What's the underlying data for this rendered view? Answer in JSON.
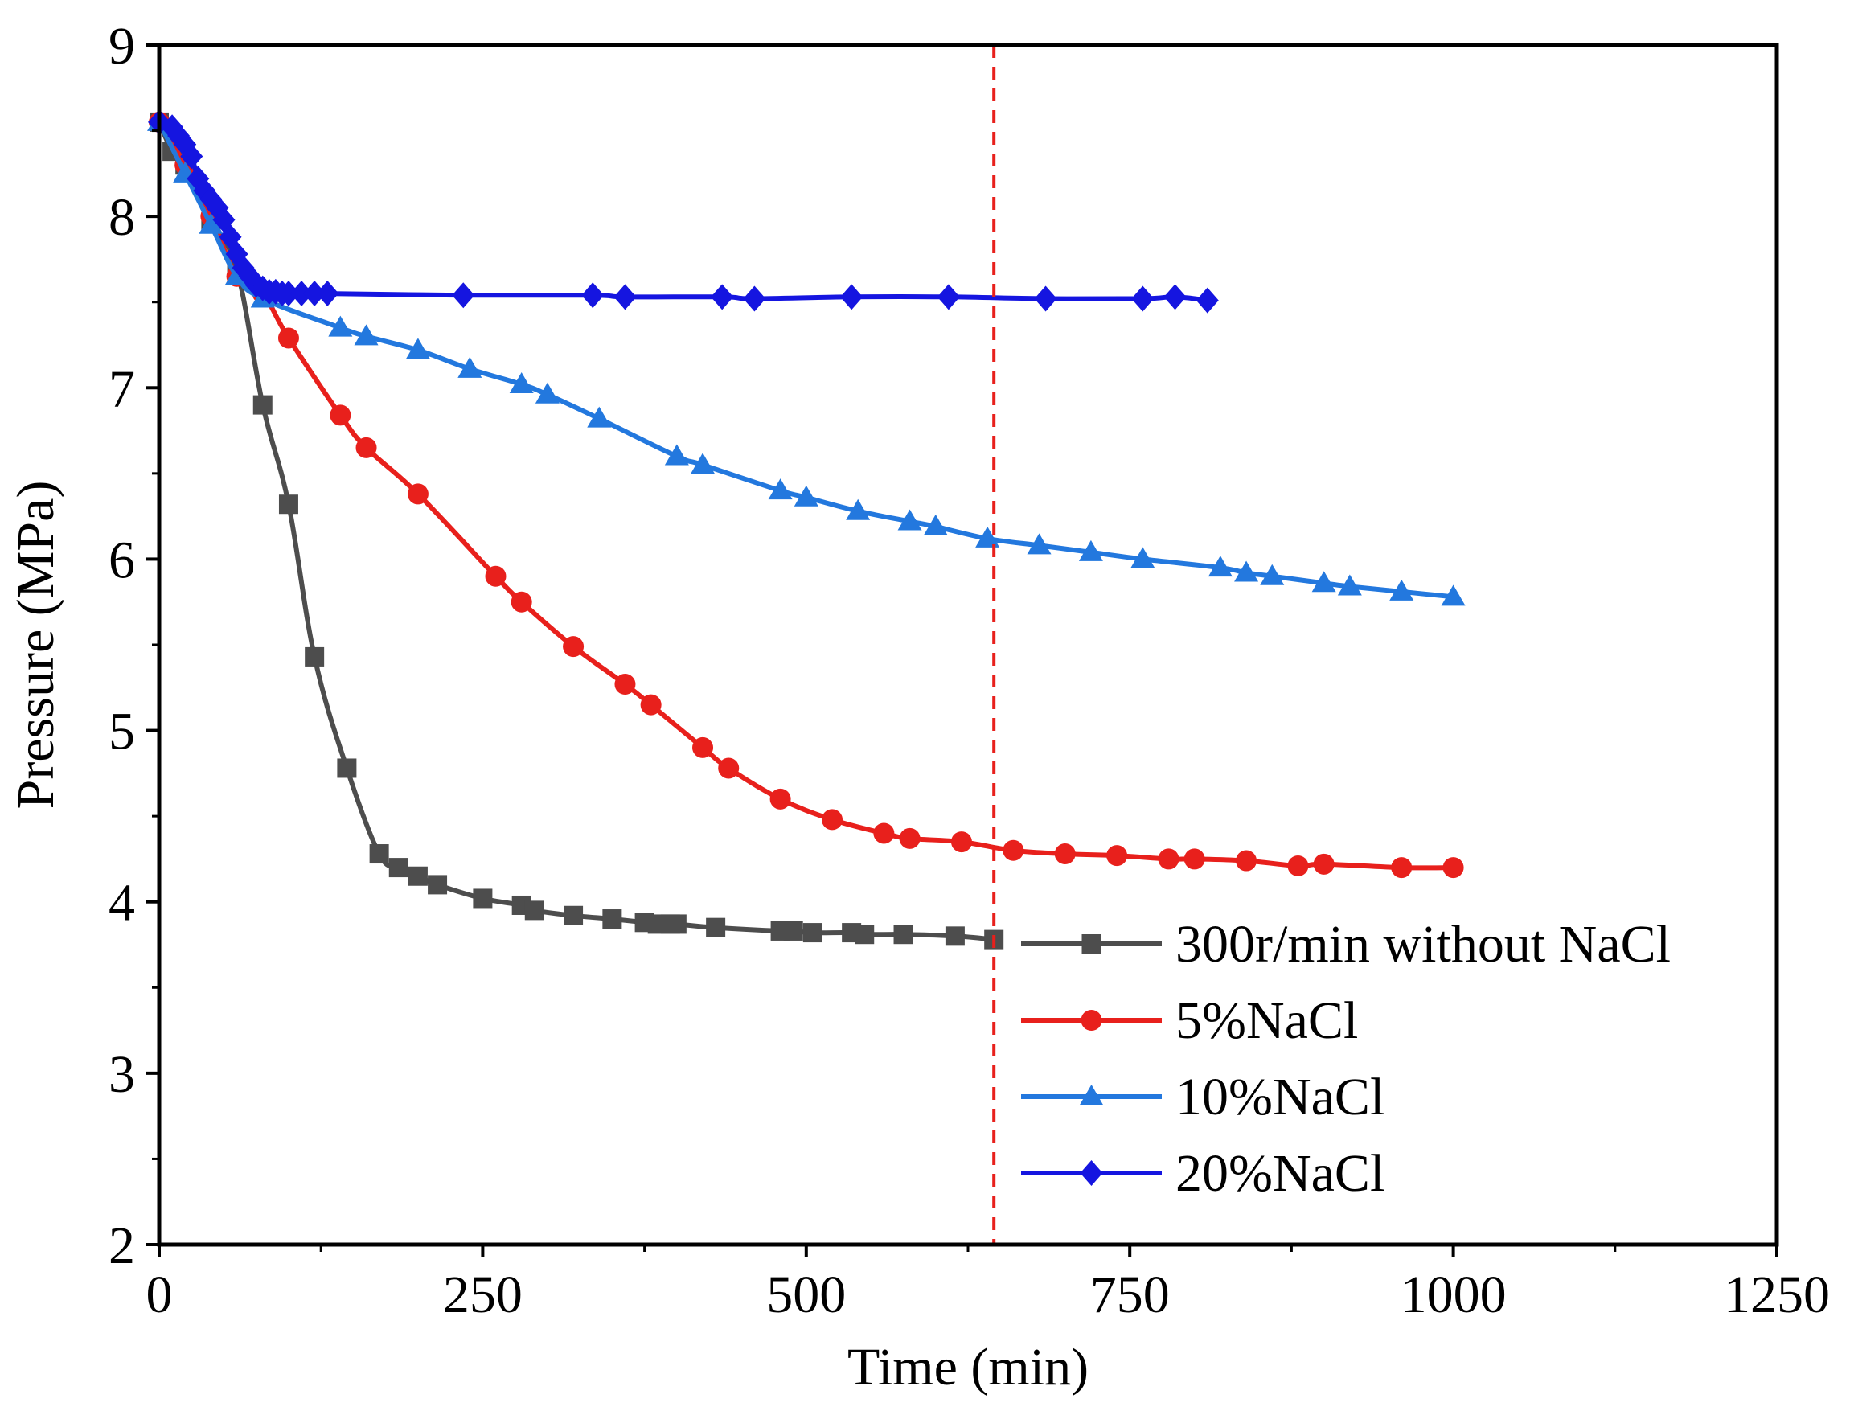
{
  "chart_data": {
    "type": "line",
    "title": "",
    "xlabel": "Time (min)",
    "ylabel": "Pressure (MPa)",
    "xlim": [
      0,
      1250
    ],
    "ylim": [
      2,
      9
    ],
    "xticks": [
      0,
      250,
      500,
      750,
      1000,
      1250
    ],
    "yticks": [
      2,
      3,
      4,
      5,
      6,
      7,
      8,
      9
    ],
    "grid": false,
    "legend_position": "bottom-right",
    "reference_line": {
      "x": 645,
      "color": "#e8201c",
      "style": "dashed"
    },
    "series": [
      {
        "name": "300r/min without NaCl",
        "color": "#4d4d4d",
        "marker": "square",
        "x": [
          0,
          10,
          20,
          40,
          60,
          80,
          100,
          120,
          145,
          170,
          185,
          200,
          215,
          250,
          280,
          290,
          320,
          350,
          375,
          385,
          395,
          400,
          430,
          480,
          490,
          505,
          535,
          545,
          575,
          615,
          645
        ],
        "y": [
          8.55,
          8.38,
          8.3,
          7.97,
          7.69,
          6.9,
          6.32,
          5.43,
          4.78,
          4.28,
          4.2,
          4.15,
          4.1,
          4.02,
          3.98,
          3.95,
          3.92,
          3.9,
          3.88,
          3.87,
          3.87,
          3.87,
          3.85,
          3.83,
          3.83,
          3.82,
          3.82,
          3.81,
          3.81,
          3.8,
          3.78
        ]
      },
      {
        "name": "5%NaCl",
        "color": "#e8201c",
        "marker": "circle",
        "x": [
          0,
          20,
          40,
          60,
          80,
          100,
          140,
          160,
          200,
          260,
          280,
          320,
          360,
          380,
          420,
          440,
          480,
          520,
          560,
          580,
          620,
          660,
          700,
          740,
          780,
          800,
          840,
          880,
          900,
          960,
          1000
        ],
        "y": [
          8.55,
          8.3,
          8.0,
          7.65,
          7.55,
          7.29,
          6.84,
          6.65,
          6.38,
          5.9,
          5.75,
          5.49,
          5.27,
          5.15,
          4.9,
          4.78,
          4.6,
          4.48,
          4.4,
          4.37,
          4.35,
          4.3,
          4.28,
          4.27,
          4.25,
          4.25,
          4.24,
          4.21,
          4.22,
          4.2,
          4.2
        ]
      },
      {
        "name": "10%NaCl",
        "color": "#2378de",
        "marker": "triangle",
        "x": [
          0,
          20,
          40,
          60,
          80,
          140,
          160,
          200,
          240,
          280,
          300,
          340,
          400,
          420,
          480,
          500,
          540,
          580,
          600,
          640,
          680,
          720,
          760,
          820,
          840,
          860,
          900,
          920,
          960,
          1000
        ],
        "y": [
          8.55,
          8.25,
          7.95,
          7.65,
          7.52,
          7.35,
          7.3,
          7.22,
          7.11,
          7.02,
          6.96,
          6.82,
          6.6,
          6.55,
          6.4,
          6.36,
          6.28,
          6.22,
          6.19,
          6.12,
          6.08,
          6.04,
          6.0,
          5.95,
          5.92,
          5.9,
          5.86,
          5.84,
          5.81,
          5.78
        ]
      },
      {
        "name": "20%NaCl",
        "color": "#1515e0",
        "marker": "diamond",
        "x": [
          0,
          10,
          15,
          20,
          25,
          30,
          35,
          40,
          45,
          50,
          55,
          60,
          65,
          70,
          75,
          80,
          85,
          90,
          95,
          100,
          110,
          120,
          130,
          235,
          335,
          360,
          435,
          460,
          535,
          610,
          685,
          760,
          785,
          810
        ],
        "y": [
          8.55,
          8.52,
          8.47,
          8.42,
          8.35,
          8.22,
          8.15,
          8.1,
          8.05,
          7.98,
          7.88,
          7.78,
          7.7,
          7.65,
          7.6,
          7.58,
          7.56,
          7.56,
          7.55,
          7.55,
          7.55,
          7.55,
          7.55,
          7.54,
          7.54,
          7.53,
          7.53,
          7.52,
          7.53,
          7.53,
          7.52,
          7.52,
          7.53,
          7.51
        ]
      }
    ]
  }
}
